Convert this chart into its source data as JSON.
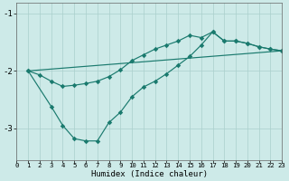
{
  "xlabel": "Humidex (Indice chaleur)",
  "bg_color": "#cdeae8",
  "line_color": "#1a7a6e",
  "grid_color": "#aacfcc",
  "ylim": [
    -3.55,
    -0.82
  ],
  "xlim": [
    0,
    23
  ],
  "yticks": [
    -3,
    -2,
    -1
  ],
  "xticks": [
    0,
    1,
    2,
    3,
    4,
    5,
    6,
    7,
    8,
    9,
    10,
    11,
    12,
    13,
    14,
    15,
    16,
    17,
    18,
    19,
    20,
    21,
    22,
    23
  ],
  "line1_x": [
    1,
    23
  ],
  "line1_y": [
    -2.0,
    -1.65
  ],
  "line2_x": [
    1,
    2,
    3,
    4,
    5,
    6,
    7,
    8,
    9,
    10,
    11,
    12,
    13,
    14,
    15,
    16,
    17,
    18,
    19,
    20,
    21,
    22,
    23
  ],
  "line2_y": [
    -2.0,
    -2.07,
    -2.18,
    -2.27,
    -2.25,
    -2.22,
    -2.18,
    -2.1,
    -1.98,
    -1.82,
    -1.72,
    -1.62,
    -1.55,
    -1.48,
    -1.38,
    -1.42,
    -1.32,
    -1.48,
    -1.48,
    -1.52,
    -1.58,
    -1.62,
    -1.65
  ],
  "line3_x": [
    1,
    3,
    4,
    5,
    6,
    7,
    8,
    9,
    10,
    11,
    12,
    13,
    14,
    15,
    16,
    17,
    18,
    19,
    20,
    21,
    22,
    23
  ],
  "line3_y": [
    -2.0,
    -2.62,
    -2.95,
    -3.18,
    -3.22,
    -3.22,
    -2.9,
    -2.72,
    -2.45,
    -2.28,
    -2.18,
    -2.05,
    -1.9,
    -1.75,
    -1.55,
    -1.32,
    -1.48,
    -1.48,
    -1.52,
    -1.58,
    -1.62,
    -1.65
  ]
}
